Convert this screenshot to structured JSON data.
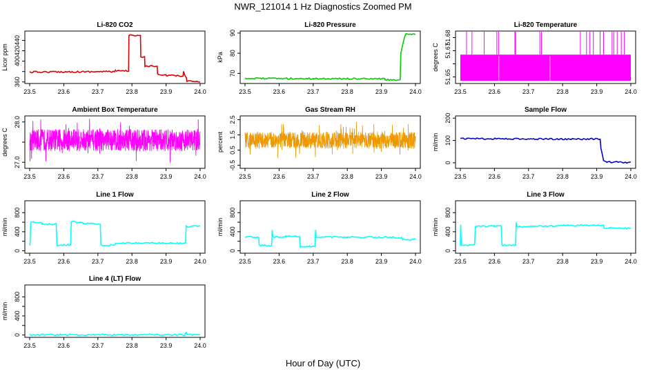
{
  "figure": {
    "title": "NWR_121014  1 Hz Diagnostics Zoomed PM",
    "xlabel": "Hour of Day (UTC)"
  },
  "chart_data": [
    {
      "type": "line",
      "title": "Li-820 CO2",
      "ylabel": "Licor ppm",
      "xlim": [
        23.5,
        24.0
      ],
      "ylim": [
        357,
        458
      ],
      "x_ticks": [
        "23.5",
        "23.6",
        "23.7",
        "23.8",
        "23.9",
        "24.0"
      ],
      "y_ticks": [
        360,
        380,
        400,
        420,
        440
      ],
      "y_tick_labels": [
        "360",
        "",
        "400",
        "420",
        "440"
      ],
      "color": "#dd0000",
      "series": [
        {
          "x": [
            23.5,
            23.749,
            23.751,
            23.79,
            23.791,
            23.825,
            23.826,
            23.837,
            23.838,
            23.874,
            23.875,
            23.9,
            23.95,
            23.951,
            23.96,
            23.961,
            24.0
          ],
          "y": [
            379,
            380,
            381,
            381,
            450,
            450,
            408,
            408,
            390,
            390,
            375,
            373,
            371,
            379,
            368,
            362,
            361
          ]
        }
      ]
    },
    {
      "type": "line",
      "title": "Li-820 Pressure",
      "ylabel": "kPa",
      "xlim": [
        23.5,
        24.0
      ],
      "ylim": [
        65,
        91
      ],
      "x_ticks": [
        "23.5",
        "23.6",
        "23.7",
        "23.8",
        "23.9",
        "24.0"
      ],
      "y_ticks": [
        70,
        80,
        90
      ],
      "y_tick_labels": [
        "70",
        "80",
        "90"
      ],
      "color": "#00cc00",
      "series": [
        {
          "x": [
            23.5,
            23.7,
            23.91,
            23.911,
            23.955,
            23.957,
            23.97,
            23.973,
            24.0
          ],
          "y": [
            67.5,
            67.4,
            67.3,
            66.8,
            66.8,
            80,
            89,
            89.5,
            89.5
          ]
        }
      ]
    },
    {
      "type": "line",
      "title": "Li-820 Temperature",
      "ylabel": "degrees C",
      "xlim": [
        23.5,
        24.0
      ],
      "ylim": [
        51.645,
        51.685
      ],
      "x_ticks": [
        "23.5",
        "23.6",
        "23.7",
        "23.8",
        "23.9",
        "24.0"
      ],
      "y_ticks": [
        51.65,
        51.66,
        51.67,
        51.68
      ],
      "y_tick_labels": [
        "51.65",
        "",
        "51.67",
        "51.68"
      ],
      "color": "#ff00ff",
      "band": [
        51.647,
        51.667
      ],
      "spikes": [
        23.518,
        23.534,
        23.57,
        23.607,
        23.612,
        23.66,
        23.662,
        23.733,
        23.738,
        23.852,
        23.87,
        23.88,
        23.89,
        23.91,
        23.92,
        23.945,
        23.95,
        23.96,
        23.972,
        23.981
      ]
    },
    {
      "type": "line",
      "title": "Ambient Box Temperature",
      "ylabel": "degrees C",
      "xlim": [
        23.5,
        24.0
      ],
      "ylim": [
        26.85,
        28.15
      ],
      "x_ticks": [
        "23.5",
        "23.6",
        "23.7",
        "23.8",
        "23.9",
        "24.0"
      ],
      "y_ticks": [
        27.0,
        27.5,
        28.0
      ],
      "y_tick_labels": [
        "27.0",
        "",
        "28.0"
      ],
      "color": "#ff00ff",
      "mean": 27.55,
      "spread": 0.55
    },
    {
      "type": "line",
      "title": "Gas Stream RH",
      "ylabel": "percent",
      "xlim": [
        23.5,
        24.0
      ],
      "ylim": [
        -0.7,
        2.75
      ],
      "x_ticks": [
        "23.5",
        "23.6",
        "23.7",
        "23.8",
        "23.9",
        "24.0"
      ],
      "y_ticks": [
        -0.5,
        0.5,
        1.5,
        2.5
      ],
      "y_tick_labels": [
        "-0.5",
        "0.5",
        "1.5",
        "2.5"
      ],
      "color": "#ee9900",
      "mean": 1.15,
      "spread": 1.1
    },
    {
      "type": "line",
      "title": "Sample Flow",
      "ylabel": "ml/min",
      "xlim": [
        23.5,
        24.0
      ],
      "ylim": [
        -25,
        210
      ],
      "x_ticks": [
        "23.5",
        "23.6",
        "23.7",
        "23.8",
        "23.9",
        "24.0"
      ],
      "y_ticks": [
        0,
        100,
        200
      ],
      "y_tick_labels": [
        "0",
        "100",
        "200"
      ],
      "color": "#0000cc",
      "series": [
        {
          "x": [
            23.5,
            23.8,
            23.91,
            23.912,
            23.92,
            23.93,
            24.0
          ],
          "y": [
            108,
            106,
            107,
            70,
            10,
            3,
            2
          ]
        }
      ]
    },
    {
      "type": "line",
      "title": "Line 1 Flow",
      "ylabel": "ml/min",
      "xlim": [
        23.5,
        24.0
      ],
      "ylim": [
        -50,
        1050
      ],
      "x_ticks": [
        "23.5",
        "23.6",
        "23.7",
        "23.8",
        "23.9",
        "24.0"
      ],
      "y_ticks": [
        0,
        200,
        400,
        600,
        800
      ],
      "y_tick_labels": [
        "0",
        "",
        "400",
        "",
        "800"
      ],
      "color": "#00ffff",
      "series": [
        {
          "x": [
            23.5,
            23.501,
            23.503,
            23.535,
            23.537,
            23.578,
            23.58,
            23.62,
            23.622,
            23.655,
            23.657,
            23.707,
            23.709,
            23.75,
            23.752,
            23.957,
            23.959,
            24.0
          ],
          "y": [
            120,
            120,
            600,
            590,
            560,
            560,
            120,
            120,
            610,
            590,
            570,
            560,
            120,
            120,
            160,
            160,
            510,
            520
          ]
        }
      ]
    },
    {
      "type": "line",
      "title": "Line 2 Flow",
      "ylabel": "ml/min",
      "xlim": [
        23.5,
        24.0
      ],
      "ylim": [
        -50,
        1050
      ],
      "x_ticks": [
        "23.5",
        "23.6",
        "23.7",
        "23.8",
        "23.9",
        "24.0"
      ],
      "y_ticks": [
        0,
        200,
        400,
        600,
        800
      ],
      "y_tick_labels": [
        "0",
        "",
        "400",
        "",
        "800"
      ],
      "color": "#00ffff",
      "series": [
        {
          "x": [
            23.5,
            23.54,
            23.542,
            23.578,
            23.58,
            23.582,
            23.62,
            23.64,
            23.65,
            23.66,
            23.662,
            23.705,
            23.707,
            23.709,
            23.8,
            23.95,
            23.96,
            23.962,
            24.0
          ],
          "y": [
            290,
            290,
            110,
            110,
            430,
            290,
            300,
            300,
            300,
            290,
            90,
            90,
            430,
            290,
            290,
            280,
            270,
            240,
            240
          ]
        }
      ]
    },
    {
      "type": "line",
      "title": "Line 3 Flow",
      "ylabel": "ml/min",
      "xlim": [
        23.5,
        24.0
      ],
      "ylim": [
        -50,
        1050
      ],
      "x_ticks": [
        "23.5",
        "23.6",
        "23.7",
        "23.8",
        "23.9",
        "24.0"
      ],
      "y_ticks": [
        0,
        200,
        400,
        600,
        800
      ],
      "y_tick_labels": [
        "0",
        "",
        "400",
        "",
        "800"
      ],
      "color": "#00ffff",
      "series": [
        {
          "x": [
            23.5,
            23.501,
            23.503,
            23.542,
            23.544,
            23.546,
            23.6,
            23.62,
            23.622,
            23.662,
            23.664,
            23.666,
            23.8,
            23.92,
            23.922,
            24.0
          ],
          "y": [
            120,
            540,
            120,
            120,
            500,
            510,
            520,
            520,
            120,
            120,
            590,
            500,
            530,
            540,
            480,
            470
          ]
        }
      ]
    },
    {
      "type": "line",
      "title": "Line 4 (LT) Flow",
      "ylabel": "ml/min",
      "xlim": [
        23.5,
        24.0
      ],
      "ylim": [
        -50,
        1050
      ],
      "x_ticks": [
        "23.5",
        "23.6",
        "23.7",
        "23.8",
        "23.9",
        "24.0"
      ],
      "y_ticks": [
        0,
        200,
        400,
        600,
        800
      ],
      "y_tick_labels": [
        "0",
        "",
        "400",
        "",
        "800"
      ],
      "color": "#00ffff",
      "series": [
        {
          "x": [
            23.5,
            23.955,
            23.957,
            23.959,
            23.961,
            24.0
          ],
          "y": [
            5,
            5,
            25,
            70,
            8,
            5
          ]
        }
      ]
    }
  ]
}
